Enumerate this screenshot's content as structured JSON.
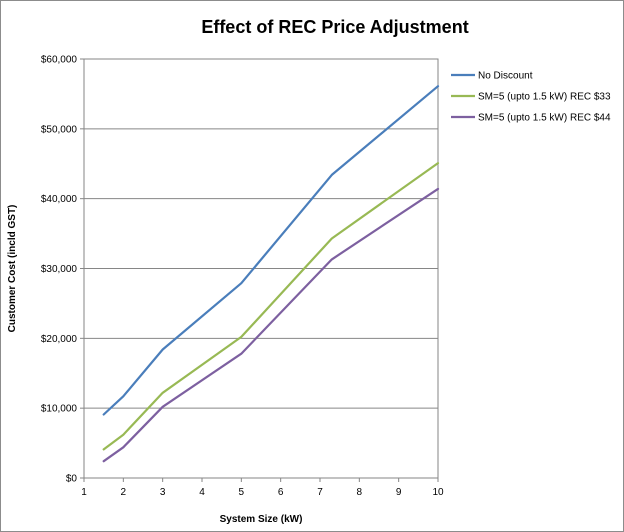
{
  "chart_data": {
    "type": "line",
    "title": "Effect of REC Price Adjustment",
    "xlabel": "System Size (kW)",
    "ylabel": "Customer Cost (incld GST)",
    "xlim": [
      1,
      10
    ],
    "ylim": [
      0,
      60000
    ],
    "xticks": [
      1,
      2,
      3,
      4,
      5,
      6,
      7,
      8,
      9,
      10
    ],
    "xtick_labels": [
      "1",
      "2",
      "3",
      "4",
      "5",
      "6",
      "7",
      "8",
      "9",
      "10"
    ],
    "yticks": [
      0,
      10000,
      20000,
      30000,
      40000,
      50000,
      60000
    ],
    "ytick_labels": [
      "$0",
      "$10,000",
      "$20,000",
      "$30,000",
      "$40,000",
      "$50,000",
      "$60,000"
    ],
    "grid": "horizontal",
    "legend_position": "right",
    "series": [
      {
        "name": "No Discount",
        "color": "#4a7ebb",
        "x": [
          1.5,
          2,
          3,
          5,
          7.3,
          10
        ],
        "y": [
          9100,
          11700,
          18400,
          27900,
          43400,
          56100
        ]
      },
      {
        "name": "SM=5 (upto 1.5 kW) REC $33",
        "color": "#98b954",
        "x": [
          1.5,
          2,
          3,
          5,
          7.3,
          10
        ],
        "y": [
          4100,
          6200,
          12200,
          20200,
          34300,
          45100
        ]
      },
      {
        "name": "SM=5 (upto 1.5 kW) REC $44",
        "color": "#7d60a0",
        "x": [
          1.5,
          2,
          3,
          5,
          7.3,
          10
        ],
        "y": [
          2400,
          4400,
          10200,
          17800,
          31300,
          41400
        ]
      }
    ]
  }
}
